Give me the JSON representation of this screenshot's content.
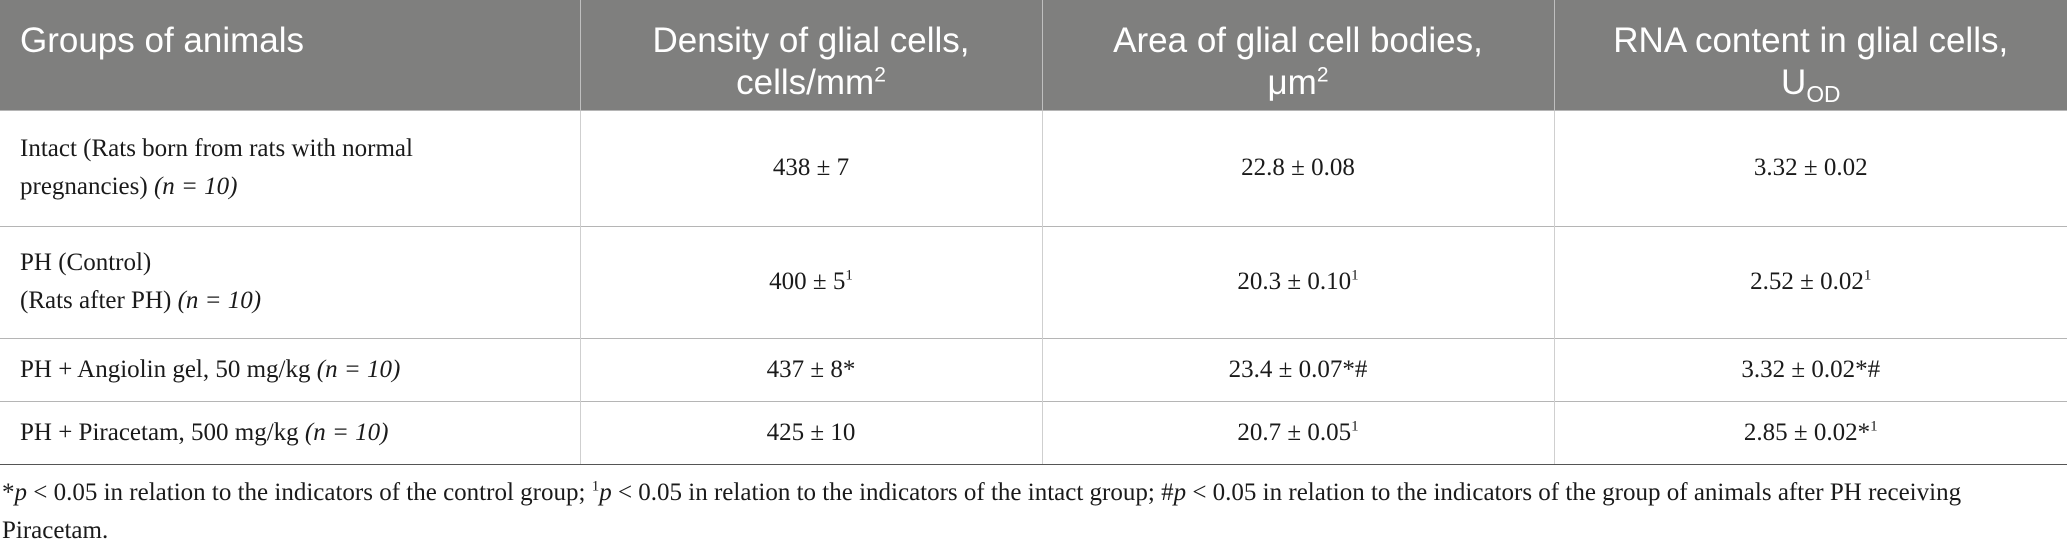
{
  "headers": {
    "col1": "Groups of animals",
    "col2_main": "Density of glial cells,",
    "col2_unit": "cells/mm",
    "col2_sup": "2",
    "col3_main": "Area of glial cell bodies,",
    "col3_unit": "μm",
    "col3_sup": "2",
    "col4_main": "RNA content in glial cells,",
    "col4_unit": "U",
    "col4_sub": "OD"
  },
  "rows": [
    {
      "line1": "Intact (Rats born from rats with normal",
      "line2": "pregnancies)",
      "n": "(n = 10)",
      "density": "438 ± 7",
      "density_mark": "",
      "area": "22.8 ± 0.08",
      "area_mark": "",
      "rna": "3.32 ± 0.02",
      "rna_mark": ""
    },
    {
      "line1": "PH (Control)",
      "line2": "(Rats after PH)",
      "n": "(n = 10)",
      "density": "400 ± 5",
      "density_mark": "1",
      "area": "20.3 ± 0.10",
      "area_mark": "1",
      "rna": "2.52 ± 0.02",
      "rna_mark": "1"
    },
    {
      "label": "PH + Angiolin gel, 50 mg/kg",
      "n": "(n = 10)",
      "density": "437 ± 8*",
      "area": "23.4 ± 0.07*#",
      "rna": "3.32 ± 0.02*#"
    },
    {
      "label": "PH + Piracetam, 500 mg/kg",
      "n": "(n = 10)",
      "density": "425 ± 10",
      "density_mark": "",
      "area": "20.7 ± 0.05",
      "area_mark": "1",
      "rna": "2.85 ± 0.02*",
      "rna_mark": "1"
    }
  ],
  "footnote": {
    "star": "*",
    "p1": "p",
    "t1": " < 0.05 in relation to the indicators of the control group; ",
    "sup1": "1",
    "p2": "p",
    "t2": " < 0.05 in relation to the indicators of the intact group; #",
    "p3": "p",
    "t3": " < 0.05 in relation to the indicators of the group of animals after PH receiving Piracetam."
  }
}
